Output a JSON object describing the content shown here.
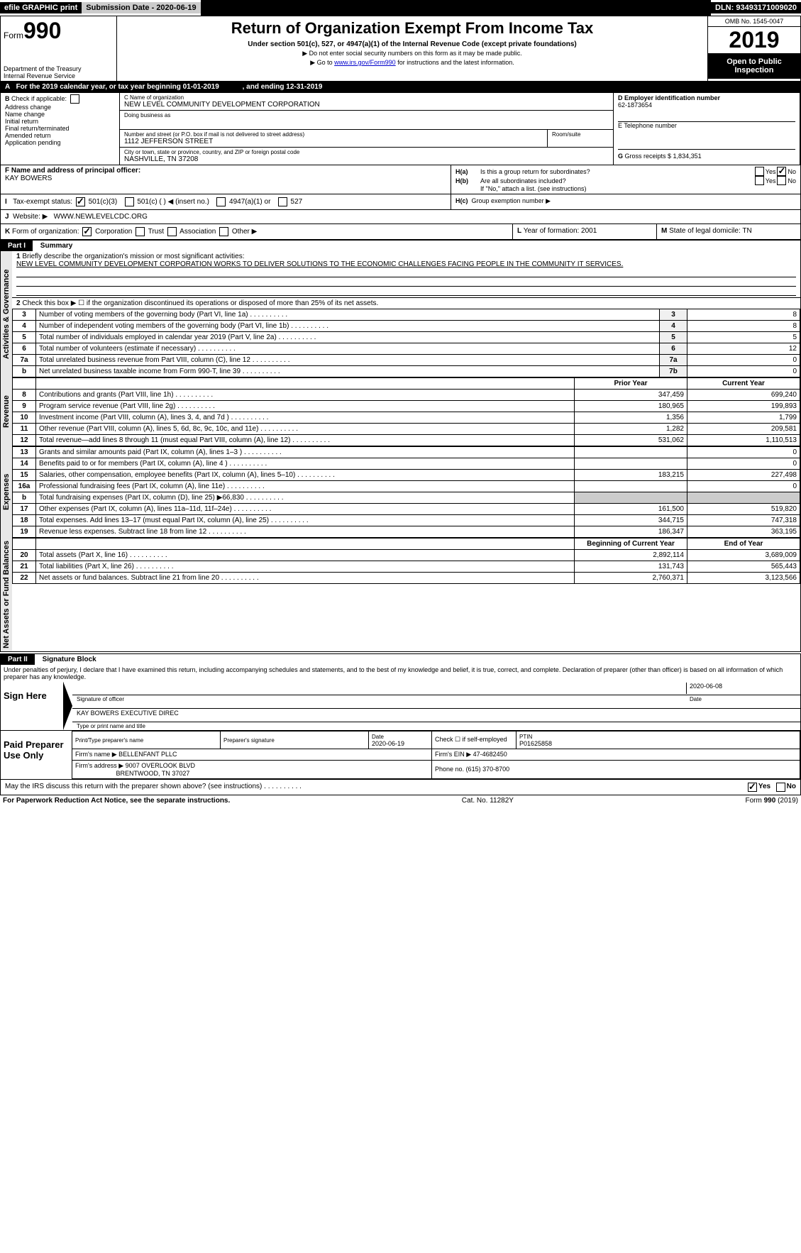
{
  "top": {
    "efile": "efile GRAPHIC print",
    "submission_label": "Submission Date - 2020-06-19",
    "dln": "DLN: 93493171009020"
  },
  "header": {
    "form_prefix": "Form",
    "form_num": "990",
    "dept": "Department of the Treasury",
    "irs": "Internal Revenue Service",
    "title": "Return of Organization Exempt From Income Tax",
    "subtitle": "Under section 501(c), 527, or 4947(a)(1) of the Internal Revenue Code (except private foundations)",
    "hint1": "▶ Do not enter social security numbers on this form as it may be made public.",
    "hint2_prefix": "▶ Go to ",
    "hint2_link": "www.irs.gov/Form990",
    "hint2_suffix": " for instructions and the latest information.",
    "omb": "OMB No. 1545-0047",
    "year": "2019",
    "open1": "Open to Public",
    "open2": "Inspection"
  },
  "A": {
    "text": "For the 2019 calendar year, or tax year beginning 01-01-2019",
    "ending": ", and ending 12-31-2019"
  },
  "B": {
    "label": "Check if applicable:",
    "items": [
      "Address change",
      "Name change",
      "Initial return",
      "Final return/terminated",
      "Amended return",
      "Application pending"
    ]
  },
  "C": {
    "name_label": "C Name of organization",
    "name": "NEW LEVEL COMMUNITY DEVELOPMENT CORPORATION",
    "dba_label": "Doing business as",
    "street_label": "Number and street (or P.O. box if mail is not delivered to street address)",
    "room_label": "Room/suite",
    "street": "1112 JEFFERSON STREET",
    "city_label": "City or town, state or province, country, and ZIP or foreign postal code",
    "city": "NASHVILLE, TN  37208"
  },
  "D": {
    "label": "D Employer identification number",
    "value": "62-1873654"
  },
  "E": {
    "label": "E Telephone number"
  },
  "G": {
    "label": "G",
    "text": "Gross receipts $ 1,834,351"
  },
  "F": {
    "label": "F  Name and address of principal officer:",
    "name": "KAY BOWERS"
  },
  "H": {
    "a": "Is this a group return for subordinates?",
    "b": "Are all subordinates included?",
    "b_note": "If \"No,\" attach a list. (see instructions)",
    "c": "Group exemption number ▶",
    "ha_label": "H(a)",
    "hb_label": "H(b)",
    "hc_label": "H(c)",
    "yes": "Yes",
    "no": "No"
  },
  "I": {
    "label": "Tax-exempt status:",
    "opts": [
      "501(c)(3)",
      "501(c) (  ) ◀ (insert no.)",
      "4947(a)(1) or",
      "527"
    ]
  },
  "J": {
    "label": "Website: ▶",
    "value": "WWW.NEWLEVELCDC.ORG"
  },
  "K": {
    "label": "Form of organization:",
    "opts": [
      "Corporation",
      "Trust",
      "Association",
      "Other ▶"
    ]
  },
  "L": {
    "label": "L",
    "text": "Year of formation: 2001"
  },
  "M": {
    "label": "M",
    "text": "State of legal domicile: TN"
  },
  "partI": {
    "title": "Part I",
    "name": "Summary",
    "line1_label": "Briefly describe the organization's mission or most significant activities:",
    "line1_text": "NEW LEVEL COMMUNITY DEVELOPMENT CORPORATION WORKS TO DELIVER SOLUTIONS TO THE ECONOMIC CHALLENGES FACING PEOPLE IN THE COMMUNITY IT SERVICES.",
    "line2": "Check this box ▶ ☐ if the organization discontinued its operations or disposed of more than 25% of its net assets.",
    "prior_year": "Prior Year",
    "current_year": "Current Year",
    "begin_year": "Beginning of Current Year",
    "end_year": "End of Year",
    "side_activities": "Activities & Governance",
    "side_revenue": "Revenue",
    "side_expenses": "Expenses",
    "side_net": "Net Assets or Fund Balances"
  },
  "lines_gov": [
    {
      "n": "3",
      "d": "Number of voting members of the governing body (Part VI, line 1a)",
      "b": "3",
      "v": "8"
    },
    {
      "n": "4",
      "d": "Number of independent voting members of the governing body (Part VI, line 1b)",
      "b": "4",
      "v": "8"
    },
    {
      "n": "5",
      "d": "Total number of individuals employed in calendar year 2019 (Part V, line 2a)",
      "b": "5",
      "v": "5"
    },
    {
      "n": "6",
      "d": "Total number of volunteers (estimate if necessary)",
      "b": "6",
      "v": "12"
    },
    {
      "n": "7a",
      "d": "Total unrelated business revenue from Part VIII, column (C), line 12",
      "b": "7a",
      "v": "0"
    },
    {
      "n": "b",
      "d": "Net unrelated business taxable income from Form 990-T, line 39",
      "b": "7b",
      "v": "0"
    }
  ],
  "lines_rev": [
    {
      "n": "8",
      "d": "Contributions and grants (Part VIII, line 1h)",
      "p": "347,459",
      "c": "699,240"
    },
    {
      "n": "9",
      "d": "Program service revenue (Part VIII, line 2g)",
      "p": "180,965",
      "c": "199,893"
    },
    {
      "n": "10",
      "d": "Investment income (Part VIII, column (A), lines 3, 4, and 7d )",
      "p": "1,356",
      "c": "1,799"
    },
    {
      "n": "11",
      "d": "Other revenue (Part VIII, column (A), lines 5, 6d, 8c, 9c, 10c, and 11e)",
      "p": "1,282",
      "c": "209,581"
    },
    {
      "n": "12",
      "d": "Total revenue—add lines 8 through 11 (must equal Part VIII, column (A), line 12)",
      "p": "531,062",
      "c": "1,110,513"
    }
  ],
  "lines_exp": [
    {
      "n": "13",
      "d": "Grants and similar amounts paid (Part IX, column (A), lines 1–3 )",
      "p": "",
      "c": "0"
    },
    {
      "n": "14",
      "d": "Benefits paid to or for members (Part IX, column (A), line 4 )",
      "p": "",
      "c": "0"
    },
    {
      "n": "15",
      "d": "Salaries, other compensation, employee benefits (Part IX, column (A), lines 5–10)",
      "p": "183,215",
      "c": "227,498"
    },
    {
      "n": "16a",
      "d": "Professional fundraising fees (Part IX, column (A), line 11e)",
      "p": "",
      "c": "0"
    },
    {
      "n": "b",
      "d": "Total fundraising expenses (Part IX, column (D), line 25) ▶66,830",
      "p": "shade",
      "c": "shade"
    },
    {
      "n": "17",
      "d": "Other expenses (Part IX, column (A), lines 11a–11d, 11f–24e)",
      "p": "161,500",
      "c": "519,820"
    },
    {
      "n": "18",
      "d": "Total expenses. Add lines 13–17 (must equal Part IX, column (A), line 25)",
      "p": "344,715",
      "c": "747,318"
    },
    {
      "n": "19",
      "d": "Revenue less expenses. Subtract line 18 from line 12",
      "p": "186,347",
      "c": "363,195"
    }
  ],
  "lines_net": [
    {
      "n": "20",
      "d": "Total assets (Part X, line 16)",
      "p": "2,892,114",
      "c": "3,689,009"
    },
    {
      "n": "21",
      "d": "Total liabilities (Part X, line 26)",
      "p": "131,743",
      "c": "565,443"
    },
    {
      "n": "22",
      "d": "Net assets or fund balances. Subtract line 21 from line 20",
      "p": "2,760,371",
      "c": "3,123,566"
    }
  ],
  "partII": {
    "title": "Part II",
    "name": "Signature Block",
    "declaration": "Under penalties of perjury, I declare that I have examined this return, including accompanying schedules and statements, and to the best of my knowledge and belief, it is true, correct, and complete. Declaration of preparer (other than officer) is based on all information of which preparer has any knowledge.",
    "sign_here": "Sign Here",
    "sig_officer": "Signature of officer",
    "date": "Date",
    "sig_date": "2020-06-08",
    "officer_name": "KAY BOWERS  EXECUTIVE DIREC",
    "type_name": "Type or print name and title",
    "paid": "Paid Preparer Use Only",
    "print_name_label": "Print/Type preparer's name",
    "prep_sig_label": "Preparer's signature",
    "prep_date_label": "Date",
    "prep_date": "2020-06-19",
    "check_self": "Check ☐ if self-employed",
    "ptin_label": "PTIN",
    "ptin": "P01625858",
    "firm_name_label": "Firm's name   ▶",
    "firm_name": "BELLENFANT PLLC",
    "firm_ein_label": "Firm's EIN ▶",
    "firm_ein": "47-4682450",
    "firm_addr_label": "Firm's address ▶",
    "firm_addr1": "9007 OVERLOOK BLVD",
    "firm_addr2": "BRENTWOOD, TN  37027",
    "phone_label": "Phone no.",
    "phone": "(615) 370-8700",
    "may_irs": "May the IRS discuss this return with the preparer shown above? (see instructions)"
  },
  "footer": {
    "left": "For Paperwork Reduction Act Notice, see the separate instructions.",
    "center": "Cat. No. 11282Y",
    "right": "Form 990 (2019)"
  }
}
